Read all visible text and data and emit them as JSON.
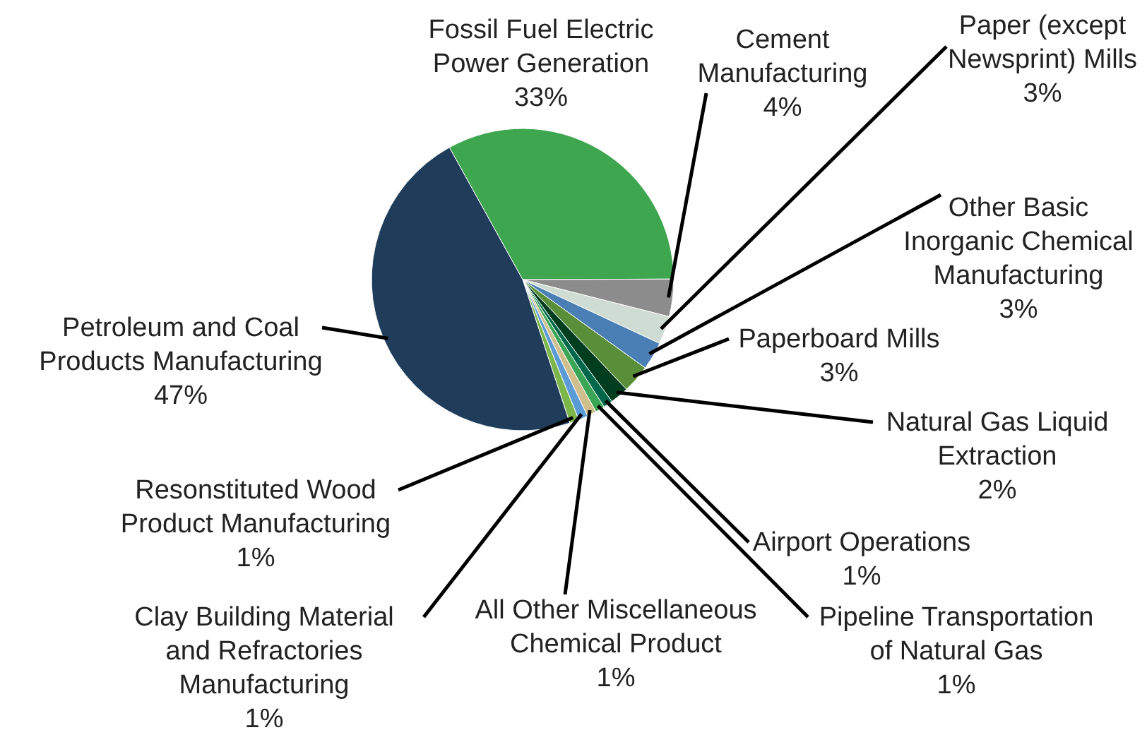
{
  "chart_data": {
    "type": "pie",
    "categories": [
      "Fossil Fuel Electric Power Generation",
      "Cement Manufacturing",
      "Paper (except Newsprint) Mills",
      "Other Basic Inorganic Chemical Manufacturing",
      "Paperboard Mills",
      "Natural Gas Liquid Extraction",
      "Airport Operations",
      "Pipeline Transportation of Natural Gas",
      "All Other Miscellaneous Chemical Product",
      "Clay Building Material and Refractories Manufacturing",
      "Resonstituted Wood Product Manufacturing",
      "Petroleum and Coal Products Manufacturing"
    ],
    "values": [
      33,
      4,
      3,
      3,
      3,
      2,
      1,
      1,
      1,
      1,
      1,
      47
    ],
    "value_labels": [
      "33%",
      "4%",
      "3%",
      "3%",
      "3%",
      "2%",
      "1%",
      "1%",
      "1%",
      "1%",
      "1%",
      "47%"
    ],
    "colors": [
      "#3ea64f",
      "#8c8c8c",
      "#cfdcd3",
      "#4a7fb5",
      "#5a8f3a",
      "#013d1f",
      "#00684a",
      "#3aa655",
      "#d0bf8c",
      "#5b9bd5",
      "#7ab648",
      "#1f3d5a"
    ]
  }
}
